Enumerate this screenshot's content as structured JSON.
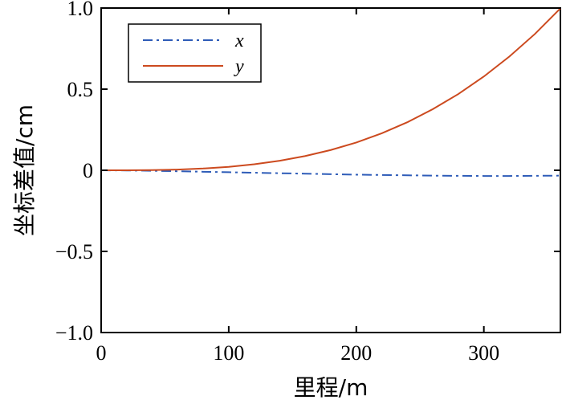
{
  "chart_data": {
    "type": "line",
    "title": "",
    "xlabel": "里程/m",
    "ylabel": "坐标差值/cm",
    "xlim": [
      0,
      360
    ],
    "ylim": [
      -1.0,
      1.0
    ],
    "x_ticks": [
      0,
      100,
      200,
      300
    ],
    "x_tick_labels": [
      "0",
      "100",
      "200",
      "300"
    ],
    "y_ticks": [
      1.0,
      0.5,
      0,
      -0.5,
      -1.0
    ],
    "y_tick_labels": [
      "1.0",
      "0.5",
      "0",
      "−0.5",
      "−1.0"
    ],
    "grid": false,
    "legend_position": "top-left",
    "series": [
      {
        "name": "x",
        "color": "#2e5cb8",
        "line_style": "dash-dot",
        "x": [
          0,
          20,
          40,
          60,
          80,
          100,
          120,
          140,
          160,
          180,
          200,
          220,
          240,
          260,
          280,
          300,
          320,
          340,
          360
        ],
        "y": [
          0,
          -0.001,
          -0.003,
          -0.006,
          -0.009,
          -0.012,
          -0.015,
          -0.018,
          -0.021,
          -0.024,
          -0.027,
          -0.029,
          -0.031,
          -0.033,
          -0.034,
          -0.035,
          -0.035,
          -0.034,
          -0.033
        ]
      },
      {
        "name": "y",
        "color": "#cc4a1f",
        "line_style": "solid",
        "x": [
          0,
          20,
          40,
          60,
          80,
          100,
          120,
          140,
          160,
          180,
          200,
          220,
          240,
          260,
          280,
          300,
          320,
          340,
          360
        ],
        "y": [
          0,
          0.0002,
          0.0014,
          0.0046,
          0.011,
          0.021,
          0.037,
          0.059,
          0.088,
          0.125,
          0.171,
          0.228,
          0.296,
          0.377,
          0.47,
          0.578,
          0.701,
          0.84,
          0.998
        ]
      }
    ]
  }
}
